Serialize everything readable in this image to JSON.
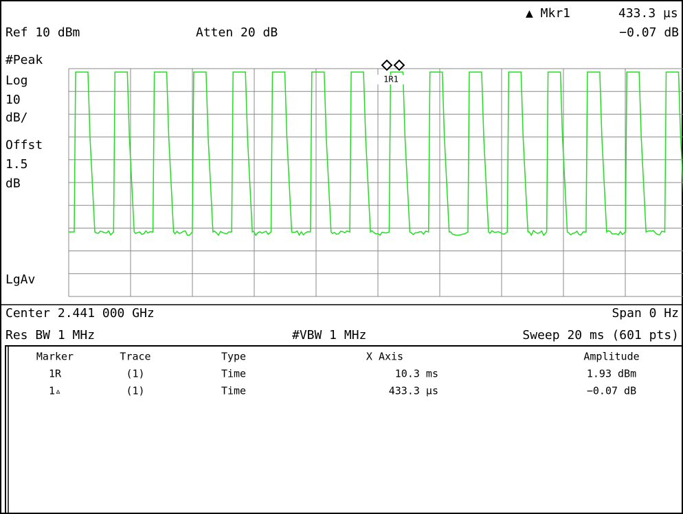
{
  "header": {
    "marker_readout_label": "▲ Mkr1",
    "marker_readout_value": "433.3 µs",
    "ref_level": "Ref 10 dBm",
    "attenuation": "Atten 20 dB",
    "marker_readout_amplitude": "−0.07 dB"
  },
  "left_labels": [
    "#Peak",
    "Log",
    "10",
    "dB/",
    "Offst",
    "1.5",
    "dB"
  ],
  "detector_label": "LgAv",
  "marker_label": "1R1",
  "footer": {
    "center": "Center 2.441 000 GHz",
    "span": "Span 0 Hz",
    "res_bw": "Res BW 1 MHz",
    "vbw": "#VBW 1 MHz",
    "sweep": "Sweep 20 ms (601 pts)"
  },
  "table": {
    "headers": [
      "Marker",
      "Trace",
      "Type",
      "X Axis",
      "Amplitude"
    ],
    "rows": [
      [
        "1R",
        "(1)",
        "Time",
        "10.3 ms",
        "1.93 dBm"
      ],
      [
        "1▵",
        "(1)",
        "Time",
        "433.3 µs",
        "−0.07 dB"
      ]
    ]
  }
}
